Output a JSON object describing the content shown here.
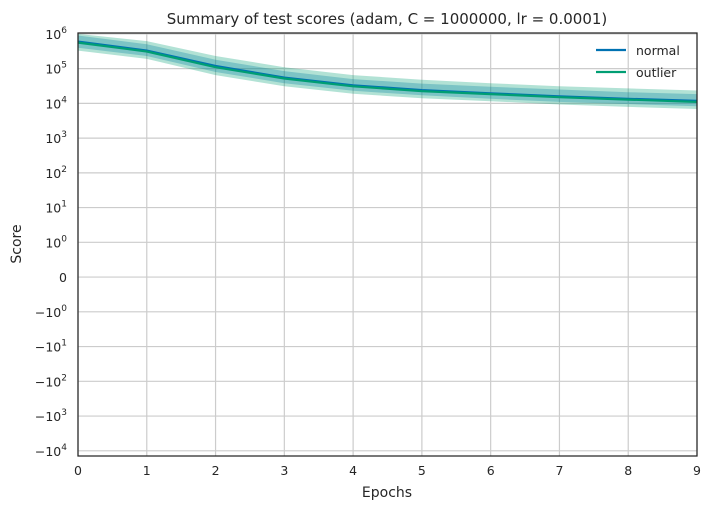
{
  "chart_data": {
    "type": "line",
    "title": "Summary of test scores (adam, C = 1000000, lr = 0.0001)",
    "xlabel": "Epochs",
    "ylabel": "Score",
    "yscale": "symlog",
    "xlim": [
      0,
      9
    ],
    "x_ticks": [
      0,
      1,
      2,
      3,
      4,
      5,
      6,
      7,
      8,
      9
    ],
    "y_ticks": [
      {
        "value": 1000000,
        "mant": "10",
        "exp": "6"
      },
      {
        "value": 100000,
        "mant": "10",
        "exp": "5"
      },
      {
        "value": 10000,
        "mant": "10",
        "exp": "4"
      },
      {
        "value": 1000,
        "mant": "10",
        "exp": "3"
      },
      {
        "value": 100,
        "mant": "10",
        "exp": "2"
      },
      {
        "value": 10,
        "mant": "10",
        "exp": "1"
      },
      {
        "value": 1,
        "mant": "10",
        "exp": "0"
      },
      {
        "value": 0,
        "mant": "0",
        "exp": ""
      },
      {
        "value": -1,
        "mant": "−10",
        "exp": "0"
      },
      {
        "value": -10,
        "mant": "−10",
        "exp": "1"
      },
      {
        "value": -100,
        "mant": "−10",
        "exp": "2"
      },
      {
        "value": -1000,
        "mant": "−10",
        "exp": "3"
      },
      {
        "value": -10000,
        "mant": "−10",
        "exp": "4"
      }
    ],
    "grid": true,
    "legend_position": "top-right",
    "x": [
      0,
      1,
      2,
      3,
      4,
      5,
      6,
      7,
      8,
      9
    ],
    "series": [
      {
        "name": "normal",
        "color": "#0072b2",
        "values": [
          600000,
          330000,
          120000,
          55000,
          33000,
          24000,
          19500,
          16000,
          13500,
          11800
        ],
        "band_low": [
          400000,
          230000,
          80000,
          38000,
          23000,
          17000,
          13500,
          11000,
          9500,
          8200
        ],
        "band_high": [
          900000,
          500000,
          180000,
          85000,
          50000,
          37000,
          30000,
          25000,
          21000,
          18500
        ]
      },
      {
        "name": "outlier",
        "color": "#009e73",
        "values": [
          560000,
          310000,
          110000,
          52000,
          31000,
          22500,
          18500,
          15000,
          12800,
          11000
        ],
        "band_low": [
          330000,
          190000,
          65000,
          31000,
          19000,
          14000,
          11500,
          9300,
          7900,
          6900
        ],
        "band_high": [
          1000000,
          620000,
          230000,
          110000,
          65000,
          48000,
          38000,
          31000,
          27000,
          23500
        ]
      }
    ]
  }
}
